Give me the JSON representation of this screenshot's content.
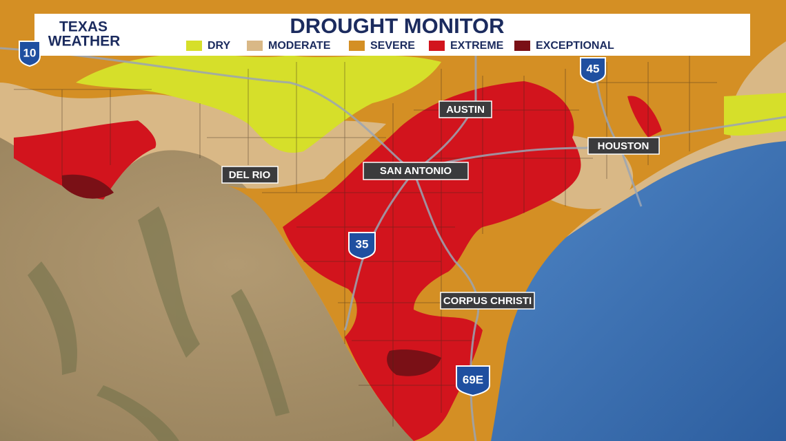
{
  "header": {
    "brand": [
      "TEXAS",
      "WEATHER"
    ],
    "title": "DROUGHT MONITOR"
  },
  "legend": [
    {
      "label": "DRY",
      "color": "#d6df2a"
    },
    {
      "label": "MODERATE",
      "color": "#d9b886"
    },
    {
      "label": "SEVERE",
      "color": "#d48f24"
    },
    {
      "label": "EXTREME",
      "color": "#d2141d"
    },
    {
      "label": "EXCEPTIONAL",
      "color": "#7a1016"
    }
  ],
  "cities": [
    "AUSTIN",
    "HOUSTON",
    "DEL RIO",
    "SAN ANTONIO",
    "CORPUS CHRISTI"
  ],
  "highways": [
    "10",
    "45",
    "35",
    "69E"
  ]
}
